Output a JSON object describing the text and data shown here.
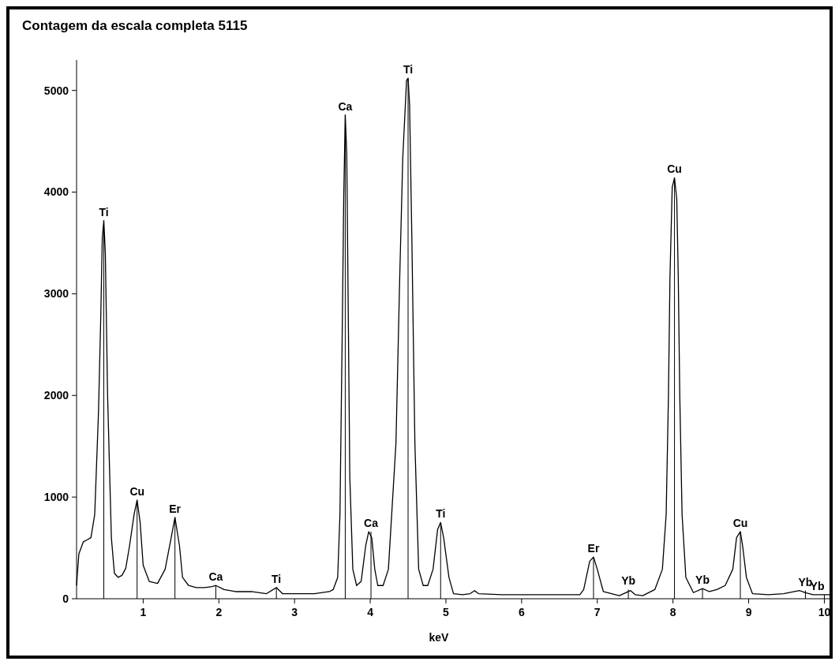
{
  "chart_data": {
    "type": "line",
    "title": "Contagem da escala completa 5115",
    "xlabel": "keV",
    "xlim": [
      0.12,
      10.11
    ],
    "ylim": [
      0,
      5300
    ],
    "xticks": [
      1,
      2,
      3,
      4,
      5,
      6,
      7,
      8,
      9,
      10
    ],
    "yticks": [
      0,
      1000,
      2000,
      3000,
      4000,
      5000
    ],
    "marker": "none",
    "line_style": "solid",
    "series": [
      {
        "color": "#000000",
        "x": [
          0.12,
          0.15,
          0.21,
          0.26,
          0.31,
          0.36,
          0.41,
          0.44,
          0.46,
          0.48,
          0.5,
          0.53,
          0.58,
          0.62,
          0.67,
          0.72,
          0.77,
          0.82,
          0.88,
          0.92,
          0.96,
          1.0,
          1.08,
          1.19,
          1.29,
          1.37,
          1.42,
          1.48,
          1.52,
          1.6,
          1.7,
          1.81,
          1.91,
          1.96,
          2.07,
          2.22,
          2.43,
          2.63,
          2.76,
          2.84,
          3.05,
          3.26,
          3.46,
          3.51,
          3.57,
          3.6,
          3.63,
          3.65,
          3.67,
          3.69,
          3.71,
          3.73,
          3.77,
          3.82,
          3.88,
          3.94,
          3.98,
          4.02,
          4.06,
          4.1,
          4.17,
          4.24,
          4.34,
          4.39,
          4.43,
          4.48,
          4.5,
          4.52,
          4.55,
          4.59,
          4.64,
          4.7,
          4.76,
          4.83,
          4.89,
          4.93,
          4.97,
          5.04,
          5.1,
          5.22,
          5.32,
          5.38,
          5.43,
          5.74,
          6.36,
          6.77,
          6.82,
          6.9,
          6.95,
          7.0,
          7.08,
          7.29,
          7.44,
          7.5,
          7.6,
          7.76,
          7.86,
          7.91,
          7.94,
          7.96,
          7.99,
          8.02,
          8.05,
          8.07,
          8.09,
          8.12,
          8.17,
          8.27,
          8.39,
          8.48,
          8.58,
          8.69,
          8.79,
          8.84,
          8.89,
          8.92,
          8.97,
          9.05,
          9.26,
          9.46,
          9.67,
          9.75,
          9.85,
          9.98,
          10.11
        ],
        "values": [
          130,
          440,
          560,
          580,
          600,
          830,
          1840,
          2780,
          3550,
          3720,
          3400,
          2000,
          600,
          250,
          210,
          230,
          300,
          520,
          830,
          970,
          750,
          330,
          170,
          150,
          290,
          600,
          800,
          520,
          210,
          130,
          110,
          110,
          120,
          130,
          90,
          70,
          70,
          50,
          110,
          50,
          50,
          50,
          70,
          90,
          210,
          830,
          2620,
          3950,
          4760,
          4370,
          2800,
          1200,
          290,
          130,
          170,
          520,
          660,
          600,
          290,
          130,
          130,
          290,
          1530,
          3170,
          4340,
          5100,
          5120,
          4860,
          3540,
          1530,
          290,
          130,
          130,
          290,
          680,
          750,
          600,
          210,
          50,
          40,
          50,
          80,
          50,
          40,
          40,
          40,
          90,
          370,
          410,
          290,
          70,
          30,
          80,
          40,
          30,
          90,
          290,
          830,
          1990,
          3160,
          4050,
          4140,
          3930,
          3160,
          1990,
          830,
          210,
          60,
          100,
          70,
          90,
          130,
          290,
          600,
          660,
          520,
          210,
          50,
          40,
          50,
          80,
          60,
          40,
          40,
          40
        ]
      }
    ],
    "annotations": [
      {
        "text": "Ti",
        "x": 0.48,
        "y": 3720
      },
      {
        "text": "Cu",
        "x": 0.92,
        "y": 970
      },
      {
        "text": "Er",
        "x": 1.42,
        "y": 800
      },
      {
        "text": "Ca",
        "x": 1.96,
        "y": 130
      },
      {
        "text": "Ti",
        "x": 2.76,
        "y": 110
      },
      {
        "text": "Ca",
        "x": 3.67,
        "y": 4760
      },
      {
        "text": "Ca",
        "x": 4.01,
        "y": 660
      },
      {
        "text": "Ti",
        "x": 4.5,
        "y": 5120
      },
      {
        "text": "Ti",
        "x": 4.93,
        "y": 750
      },
      {
        "text": "Er",
        "x": 6.95,
        "y": 410
      },
      {
        "text": "Yb",
        "x": 7.41,
        "y": 90
      },
      {
        "text": "Cu",
        "x": 8.02,
        "y": 4140
      },
      {
        "text": "Yb",
        "x": 8.39,
        "y": 100
      },
      {
        "text": "Cu",
        "x": 8.89,
        "y": 660
      },
      {
        "text": "Yb",
        "x": 9.75,
        "y": 80
      },
      {
        "text": "Yb",
        "x": 10.0,
        "y": 40
      }
    ]
  }
}
